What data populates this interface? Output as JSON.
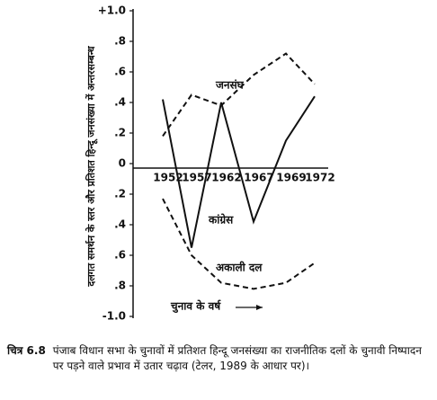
{
  "chart_data": {
    "type": "line",
    "y_label": "दलगत समर्थन के स्तर और प्रतिशत हिन्दू जनसंख्या में अन्तरसम्बन्ध",
    "x_label": "चुनाव के वर्ष",
    "categories": [
      "1952",
      "1957",
      "1962",
      "1967",
      "1969",
      "1972"
    ],
    "series": [
      {
        "name": "जनसंघ",
        "color": "#111111",
        "style": "dashed",
        "values": [
          0.18,
          0.45,
          0.38,
          0.58,
          0.72,
          0.52
        ]
      },
      {
        "name": "कांग्रेस",
        "color": "#111111",
        "style": "solid",
        "values": [
          0.42,
          -0.55,
          0.4,
          -0.38,
          0.15,
          0.44
        ]
      },
      {
        "name": "अकाली दल",
        "color": "#111111",
        "style": "dashed",
        "values": [
          -0.23,
          -0.6,
          -0.78,
          -0.82,
          -0.78,
          -0.65
        ]
      }
    ],
    "ylim": [
      -1.0,
      1.0
    ],
    "yticks": [
      {
        "value": 1.0,
        "label": "+1.0"
      },
      {
        "value": 0.8,
        "label": ".8"
      },
      {
        "value": 0.6,
        "label": ".6"
      },
      {
        "value": 0.4,
        "label": ".4"
      },
      {
        "value": 0.2,
        "label": ".2"
      },
      0,
      {
        "value": -0.2,
        "label": ".2"
      },
      {
        "value": -0.4,
        "label": ".4"
      },
      {
        "value": -0.6,
        "label": ".6"
      },
      {
        "value": -0.8,
        "label": ".8"
      },
      {
        "value": -1.0,
        "label": "-1.0"
      }
    ],
    "caption_label": "चित्र 6.8",
    "caption": "पंजाब विधान सभा के चुनावों में प्रतिशत हिन्दू जनसंख्या का राजनीतिक दलों के चुनावी निष्पादन पर पड़ने वाले प्रभाव में उतार चढ़ाव (टेलर, 1989 के आधार पर)।"
  }
}
